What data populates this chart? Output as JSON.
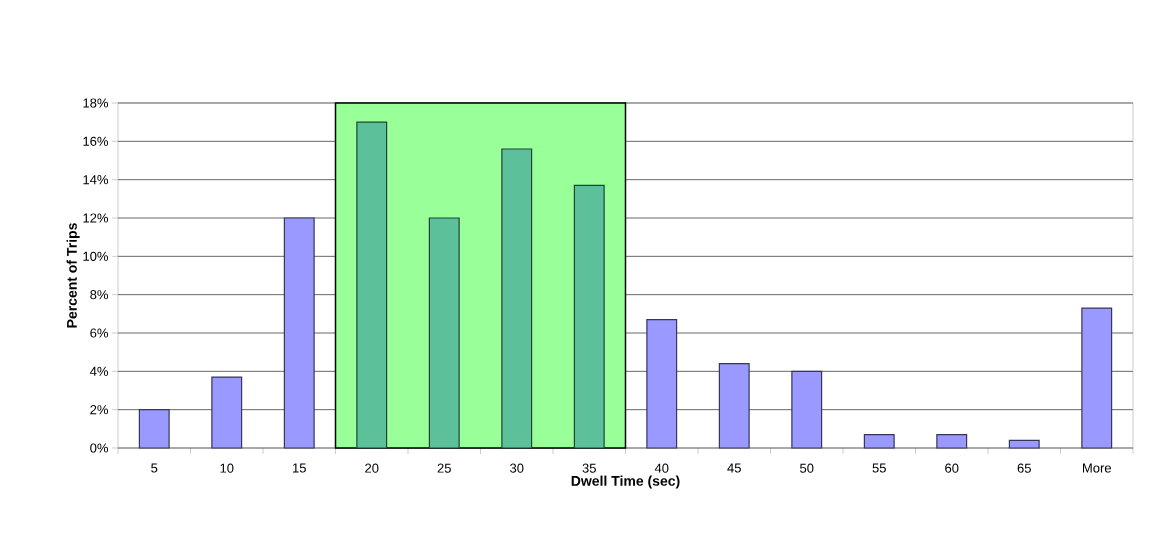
{
  "chart_data": {
    "type": "bar",
    "xlabel": "Dwell Time (sec)",
    "ylabel": "Percent of Trips",
    "categories": [
      "5",
      "10",
      "15",
      "20",
      "25",
      "30",
      "35",
      "40",
      "45",
      "50",
      "55",
      "60",
      "65",
      "More"
    ],
    "values": [
      2.0,
      3.7,
      12.0,
      17.0,
      12.0,
      15.6,
      13.7,
      6.7,
      4.4,
      4.0,
      0.7,
      0.7,
      0.4,
      7.3
    ],
    "colors": [
      "#9999ff",
      "#9999ff",
      "#9999ff",
      "#5cc09a",
      "#5cc09a",
      "#5cc09a",
      "#5cc09a",
      "#9999ff",
      "#9999ff",
      "#9999ff",
      "#9999ff",
      "#9999ff",
      "#9999ff",
      "#9999ff"
    ],
    "ylim": [
      0,
      18
    ],
    "yticks": [
      {
        "value": 0,
        "label": "0%"
      },
      {
        "value": 2,
        "label": "2%"
      },
      {
        "value": 4,
        "label": "4%"
      },
      {
        "value": 6,
        "label": "6%"
      },
      {
        "value": 8,
        "label": "8%"
      },
      {
        "value": 10,
        "label": "10%"
      },
      {
        "value": 12,
        "label": "12%"
      },
      {
        "value": 14,
        "label": "14%"
      },
      {
        "value": 16,
        "label": "16%"
      },
      {
        "value": 18,
        "label": "18%"
      }
    ],
    "bands": [
      {
        "axis": "x",
        "from": "20",
        "to": "35",
        "color": "#99ff99"
      }
    ],
    "grid": "y"
  }
}
